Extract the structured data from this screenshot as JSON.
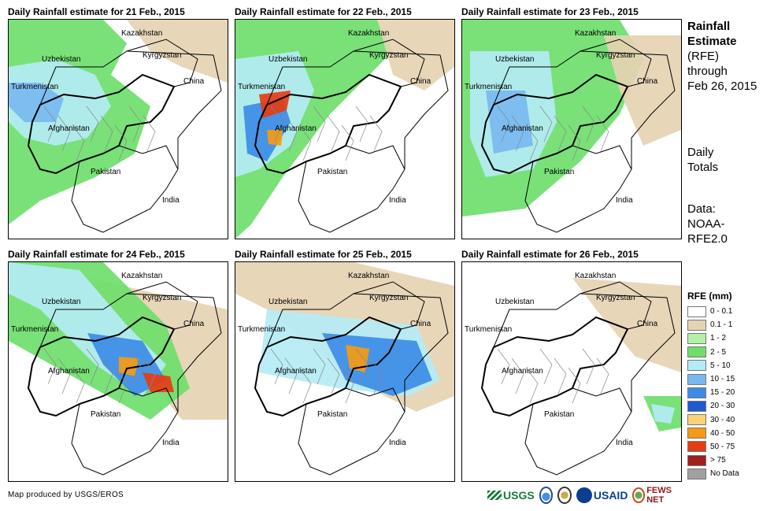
{
  "panels": [
    {
      "title": "Daily Rainfall estimate for 21 Feb., 2015"
    },
    {
      "title": "Daily Rainfall estimate for 22 Feb., 2015"
    },
    {
      "title": "Daily Rainfall estimate for 23 Feb., 2015"
    },
    {
      "title": "Daily Rainfall estimate for 24 Feb., 2015"
    },
    {
      "title": "Daily Rainfall estimate for 25 Feb., 2015"
    },
    {
      "title": "Daily Rainfall estimate for 26 Feb., 2015"
    }
  ],
  "countries": {
    "kazakhstan": "Kazakhstan",
    "uzbekistan": "Uzbekistan",
    "kyrgyzstan": "Kyrgyzstan",
    "turkmenistan": "Turkmenistan",
    "china": "China",
    "afghanistan": "Afghanistan",
    "pakistan": "Pakistan",
    "india": "India"
  },
  "side": {
    "title_line1": "Rainfall",
    "title_line2": "Estimate",
    "title_line3": "(RFE)",
    "title_line4": "through",
    "title_line5": "Feb 26, 2015",
    "daily_line1": "Daily",
    "daily_line2": "Totals",
    "data_line1": "Data:",
    "data_line2": "NOAA-",
    "data_line3": "RFE2.0"
  },
  "legend": {
    "title": "RFE (mm)",
    "items": [
      {
        "label": "0 - 0.1",
        "color": "#ffffff"
      },
      {
        "label": "0.1 - 1",
        "color": "#e6d3b3"
      },
      {
        "label": "1 - 2",
        "color": "#b4f0a8"
      },
      {
        "label": "2 - 5",
        "color": "#6ede6b"
      },
      {
        "label": "5 - 10",
        "color": "#b4ecf5"
      },
      {
        "label": "10 - 15",
        "color": "#78b8f0"
      },
      {
        "label": "15 - 20",
        "color": "#3c8ce6"
      },
      {
        "label": "20 - 30",
        "color": "#1e5ad2"
      },
      {
        "label": "30 - 40",
        "color": "#fad278"
      },
      {
        "label": "40 - 50",
        "color": "#f59a14"
      },
      {
        "label": "50 - 75",
        "color": "#e63c14"
      },
      {
        "label": "> 75",
        "color": "#a01e1e"
      },
      {
        "label": "No Data",
        "color": "#a0a0a0"
      }
    ]
  },
  "credit": "Map produced by USGS/EROS",
  "logos": {
    "usgs": "USGS",
    "usaid": "USAID",
    "fews": "FEWS NET"
  }
}
